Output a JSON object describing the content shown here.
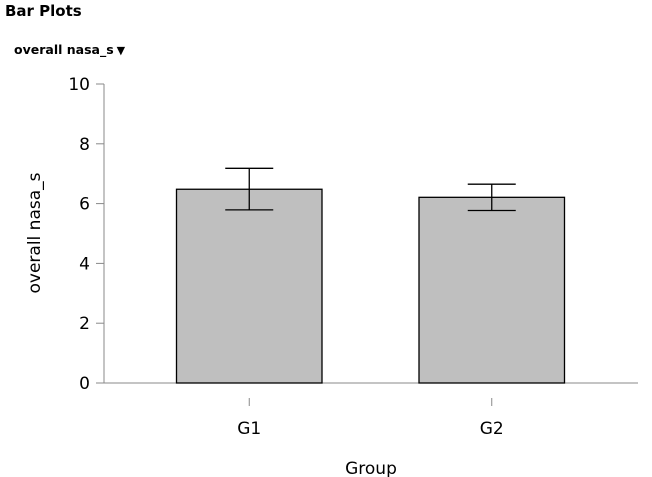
{
  "header": {
    "title": "Bar Plots",
    "variable_selector": {
      "label": "overall nasa_s",
      "caret": "▼"
    }
  },
  "chart_data": {
    "type": "bar",
    "categories": [
      "G1",
      "G2"
    ],
    "values": [
      6.48,
      6.21
    ],
    "error_bars": {
      "lower": [
        5.79,
        5.77
      ],
      "upper": [
        7.18,
        6.65
      ]
    },
    "xlabel": "Group",
    "ylabel": "overall nasa_s",
    "ylim": [
      0,
      10
    ],
    "yticks": [
      0,
      2,
      4,
      6,
      8,
      10
    ],
    "grid": false,
    "bar_color": "#bfbfbf",
    "bar_edge_color": "#000000"
  }
}
